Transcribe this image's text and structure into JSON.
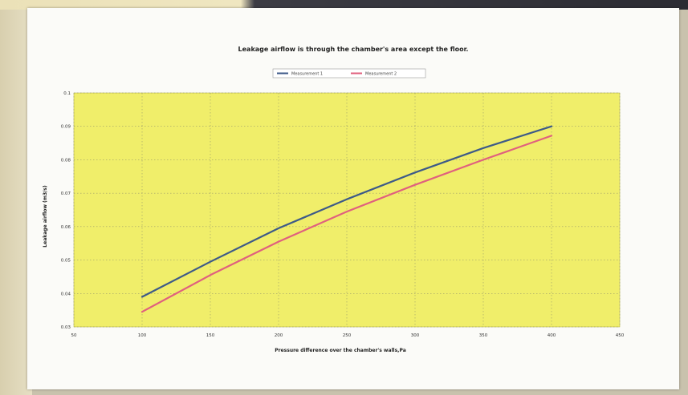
{
  "chart_data": {
    "type": "line",
    "title": "Leakage airflow is through the chamber's area except the floor.",
    "xlabel": "Pressure difference over the chamber's walls,Pa",
    "ylabel": "Leakage airflow (m3/s)",
    "xlim": [
      50,
      450
    ],
    "ylim": [
      0.03,
      0.1
    ],
    "x_ticks": [
      50,
      100,
      150,
      200,
      250,
      300,
      350,
      400,
      450
    ],
    "y_ticks": [
      0.03,
      0.04,
      0.05,
      0.06,
      0.07,
      0.08,
      0.09,
      0.1
    ],
    "x_tick_labels": [
      "50",
      "100",
      "150",
      "200",
      "250",
      "300",
      "350",
      "400",
      "450"
    ],
    "y_tick_labels": [
      "0.03",
      "0.04",
      "0.05",
      "0.06",
      "0.07",
      "0.08",
      "0.09",
      "0.1"
    ],
    "x": [
      100,
      150,
      200,
      250,
      300,
      350,
      400
    ],
    "series": [
      {
        "name": "Measurement 1",
        "color": "#3d5a88",
        "values": [
          0.039,
          0.0495,
          0.0595,
          0.0682,
          0.0762,
          0.0835,
          0.09
        ]
      },
      {
        "name": "Measurement 2",
        "color": "#e0607e",
        "values": [
          0.0345,
          0.0455,
          0.0555,
          0.0645,
          0.0725,
          0.08,
          0.0872
        ]
      }
    ],
    "plot_background": "#f0ee6a",
    "grid": true,
    "legend_position": "top-center"
  }
}
